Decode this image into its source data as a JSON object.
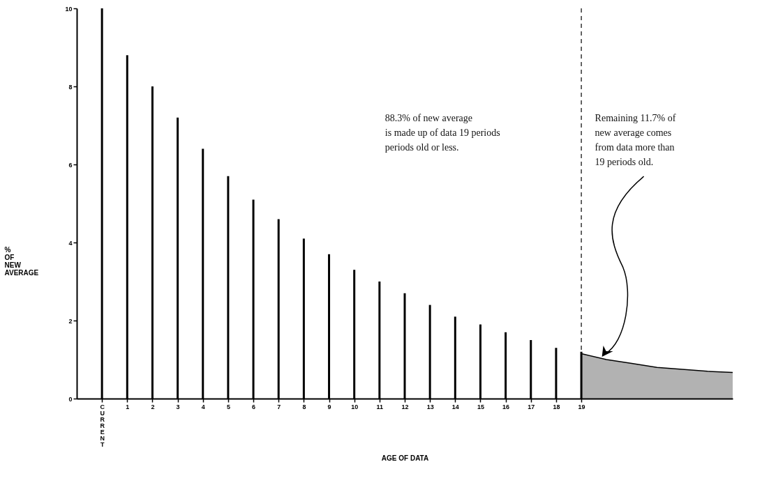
{
  "chart_data": {
    "type": "bar",
    "xlabel": "AGE OF DATA",
    "ylabel": "% OF NEW AVERAGE",
    "xlim": [
      -1,
      25
    ],
    "xticks": [
      {
        "value": 0,
        "label": "CURRENT"
      },
      1,
      2,
      3,
      4,
      5,
      6,
      7,
      8,
      9,
      10,
      11,
      12,
      13,
      14,
      15,
      16,
      17,
      18,
      19
    ],
    "ylim": [
      0,
      10
    ],
    "yticks": [
      0,
      2,
      4,
      6,
      8,
      10
    ],
    "series": [
      {
        "color": "#000000",
        "x": [
          0,
          1,
          2,
          3,
          4,
          5,
          6,
          7,
          8,
          9,
          10,
          11,
          12,
          13,
          14,
          15,
          16,
          17,
          18,
          19
        ],
        "values": [
          10,
          8.8,
          8.0,
          7.2,
          6.4,
          5.7,
          5.1,
          4.6,
          4.1,
          3.7,
          3.3,
          3.0,
          2.7,
          2.4,
          2.1,
          1.9,
          1.7,
          1.5,
          1.3,
          1.2
        ]
      },
      {
        "type": "area",
        "color": "#000000",
        "x": [
          19,
          20,
          21,
          22,
          23,
          24,
          25
        ],
        "values": [
          1.15,
          1.0,
          0.9,
          0.8,
          0.75,
          0.7,
          0.67
        ]
      }
    ],
    "ref_lines": [
      {
        "axis": "x",
        "value": 19,
        "line_style": "dashed"
      }
    ],
    "annotations": [
      "88.3% of new average\nis made up of data 19 periods\nperiods old or less.",
      "Remaining 11.7% of\nnew average comes\nfrom data more than\n19 periods old."
    ]
  }
}
